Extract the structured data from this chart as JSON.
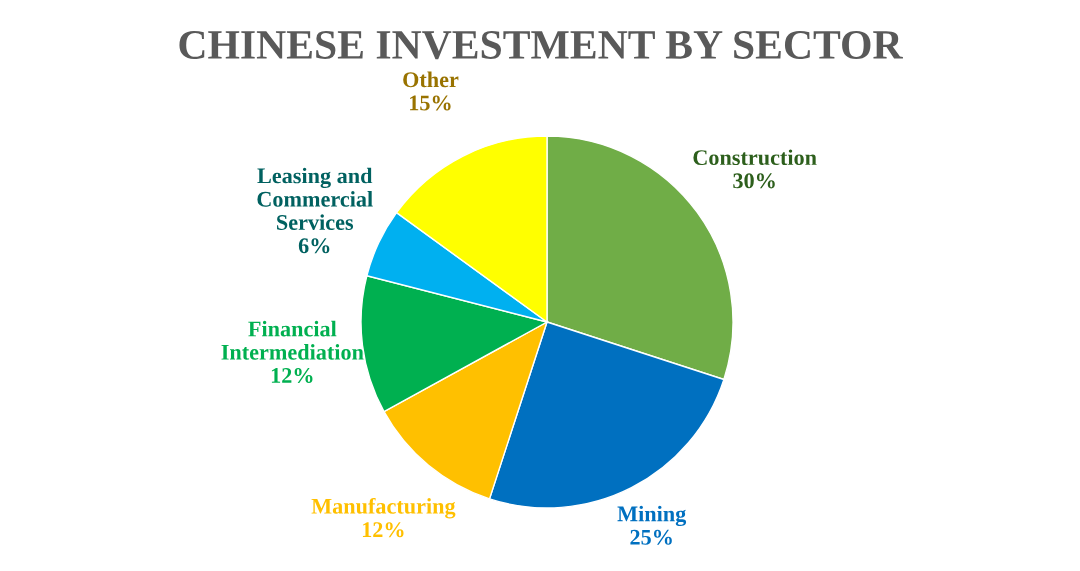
{
  "chart_data": {
    "type": "pie",
    "title": "CHINESE INVESTMENT BY SECTOR",
    "categories": [
      "Construction",
      "Mining",
      "Manufacturing",
      "Financial Intermediation",
      "Leasing and Commercial Services",
      "Other"
    ],
    "values": [
      30,
      25,
      12,
      12,
      6,
      15
    ],
    "colors": [
      "#70ad47",
      "#0070c0",
      "#ffc000",
      "#00b050",
      "#00b0f0",
      "#ffff00"
    ],
    "value_labels": [
      "30%",
      "25%",
      "12%",
      "12%",
      "6%",
      "15%"
    ],
    "legend": false
  }
}
